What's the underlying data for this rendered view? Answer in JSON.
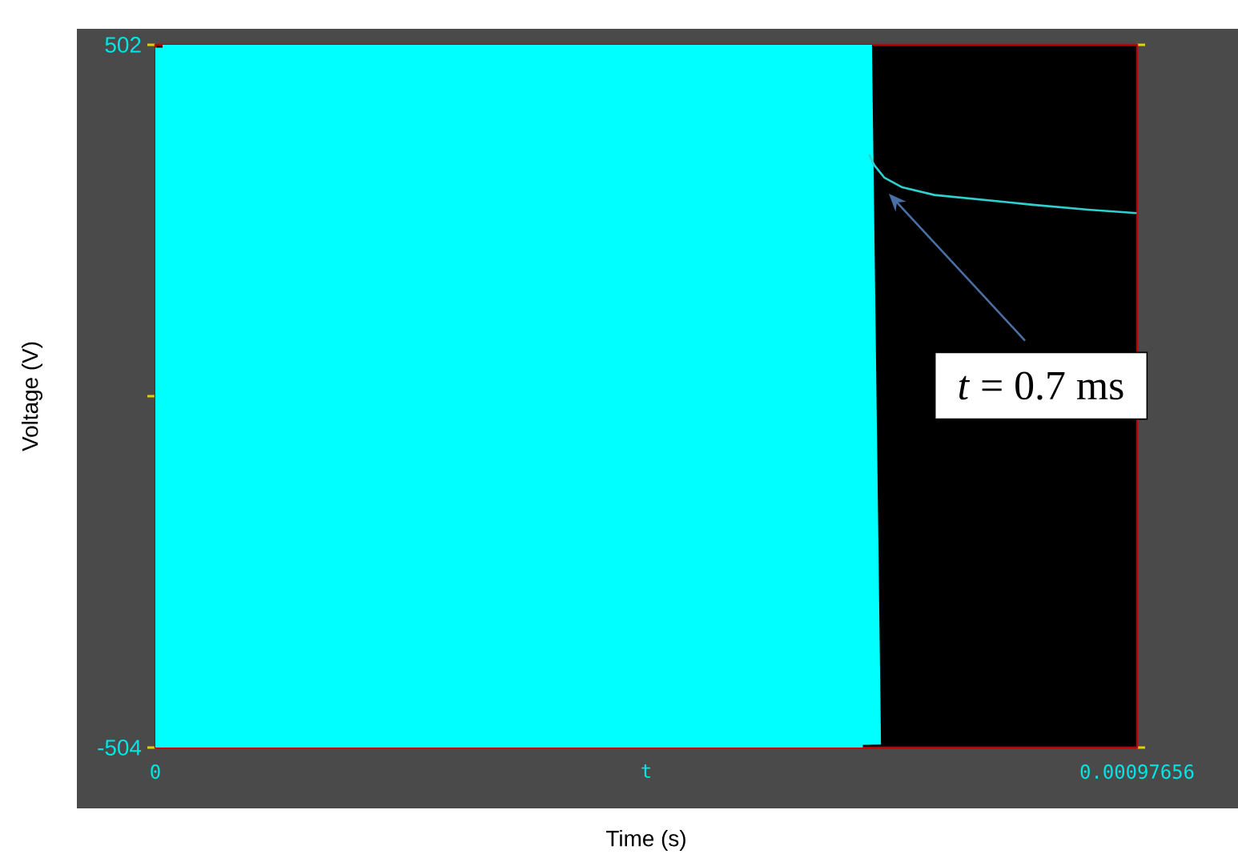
{
  "chart_data": {
    "type": "line",
    "xlabel": "Time (s)",
    "ylabel": "Voltage (V)",
    "xlim": [
      0,
      0.00097656
    ],
    "xticks": [
      0,
      {
        "value": 0.00048828,
        "label": "t"
      },
      0.00097656
    ],
    "ylim": [
      -504,
      502
    ],
    "yticks": [
      -504,
      {
        "value": -1,
        "label": null
      },
      502
    ],
    "series": [
      {
        "color": "#00ffff",
        "x": [
          0,
          9e-06,
          1.8e-05,
          2.7e-05,
          3.6e-05,
          4.5e-05,
          5.4e-05,
          6.3e-05,
          7.2e-05,
          8.1e-05,
          9e-05,
          9.9e-05,
          0.000108,
          0.000117,
          0.000126,
          0.000135,
          0.000144,
          0.000153,
          0.000162,
          0.000171,
          0.00018,
          0.000189,
          0.000198,
          0.000207,
          0.000216,
          0.000225,
          0.000234,
          0.000243,
          0.000252,
          0.000261,
          0.00027,
          0.000279,
          0.000288,
          0.000297,
          0.000306,
          0.000315,
          0.000324,
          0.000333,
          0.000342,
          0.000351,
          0.00036,
          0.000369,
          0.000378,
          0.000387,
          0.000396,
          0.000405,
          0.000414,
          0.000423,
          0.000432,
          0.000441,
          0.00045,
          0.000459,
          0.000468,
          0.000477,
          0.000486,
          0.000495,
          0.000504,
          0.000513,
          0.000522,
          0.000531,
          0.00054,
          0.000549,
          0.000558,
          0.000567,
          0.000576,
          0.000585,
          0.000594,
          0.000603,
          0.000612,
          0.000621,
          0.00063,
          0.000639,
          0.000648,
          0.000657,
          0.000666,
          0.000675,
          0.000684,
          0.000693,
          0.000702,
          0.000711
        ],
        "values": [
          498,
          -502,
          501,
          -499,
          495,
          -503,
          502,
          -500,
          497,
          -501,
          500,
          -504,
          499,
          -498,
          496,
          -502,
          501,
          -500,
          494,
          -503,
          500,
          -499,
          502,
          -501,
          497,
          -502,
          499,
          -500,
          495,
          -503,
          501,
          -498,
          500,
          -502,
          498,
          -501,
          502,
          -504,
          496,
          -500,
          499,
          -502,
          501,
          -499,
          497,
          -503,
          500,
          -501,
          495,
          -500,
          502,
          -502,
          498,
          -499,
          500,
          -503,
          496,
          -501,
          501,
          -500,
          499,
          -502,
          497,
          -504,
          502,
          -500,
          498,
          -501,
          495,
          -503,
          500,
          -499,
          501,
          -502,
          497,
          -500,
          499,
          -501,
          502,
          -500
        ]
      },
      {
        "color": "#30d0d0",
        "x": [
          0.00071,
          0.000715,
          0.000725,
          0.000743,
          0.000775,
          0.000824,
          0.000873,
          0.000928,
          0.000976
        ],
        "values": [
          345,
          330,
          312,
          298,
          287,
          280,
          273,
          266,
          261
        ]
      }
    ],
    "annotations": [
      "*t* = 0.7 ms"
    ]
  }
}
